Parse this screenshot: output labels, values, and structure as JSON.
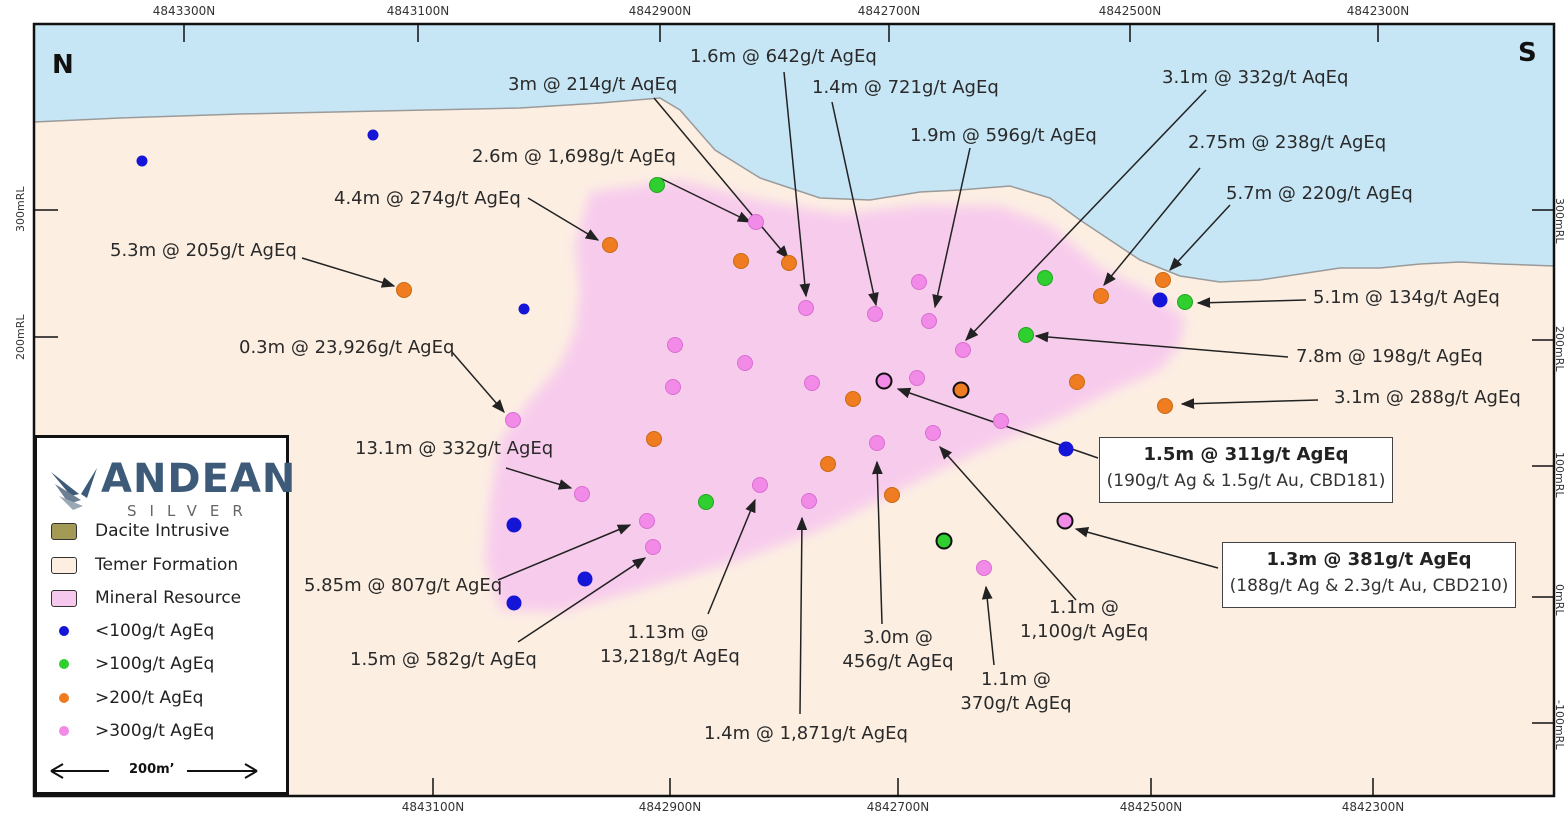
{
  "compass": {
    "north": "N",
    "south": "S"
  },
  "northings_top": [
    "4843300N",
    "4843100N",
    "4842900N",
    "4842700N",
    "4842500N",
    "4842300N"
  ],
  "northings_bottom": [
    "4843100N",
    "4842900N",
    "4842700N",
    "4842500N",
    "4842300N"
  ],
  "rl_left": [
    "300mRL",
    "200mRL"
  ],
  "rl_right": [
    "300mRL",
    "200mRL",
    "100mRL",
    "0mRL",
    "-100mRL"
  ],
  "colors": {
    "sky": "#c6e6f6",
    "formation": "#fcefe2",
    "resource": "#f7c8ee",
    "lt100": "#1515d8",
    "gt100": "#2fcf2f",
    "gt200": "#f07c22",
    "gt300": "#f28ae8"
  },
  "intercepts": [
    {
      "label": "1.6m @ 642g/t AgEq"
    },
    {
      "label": "3m @ 214g/t AqEq"
    },
    {
      "label": "1.4m @ 721g/t AgEq"
    },
    {
      "label": "3.1m @ 332g/t AqEq"
    },
    {
      "label": "1.9m @ 596g/t AgEq"
    },
    {
      "label": "2.6m @ 1,698g/t AgEq"
    },
    {
      "label": "2.75m @ 238g/t AgEq"
    },
    {
      "label": "4.4m @ 274g/t AgEq"
    },
    {
      "label": "5.7m @ 220g/t AgEq"
    },
    {
      "label": "5.3m @ 205g/t AgEq"
    },
    {
      "label": "5.1m @ 134g/t AgEq"
    },
    {
      "label": "0.3m @ 23,926g/t AgEq"
    },
    {
      "label": "7.8m @ 198g/t AgEq"
    },
    {
      "label": "3.1m @ 288g/t AgEq"
    },
    {
      "label": "13.1m @ 332g/t AgEq"
    },
    {
      "label": "5.85m @ 807g/t AgEq"
    },
    {
      "label": "1.5m @ 582g/t AgEq"
    },
    {
      "line1": "1.13m @",
      "line2": "13,218g/t AgEq"
    },
    {
      "label": "1.4m @ 1,871g/t AgEq"
    },
    {
      "line1": "3.0m @",
      "line2": "456g/t AgEq"
    },
    {
      "line1": "1.1m @",
      "line2": "370g/t AgEq"
    },
    {
      "line1": "1.1m @",
      "line2": "1,100g/t AgEq"
    }
  ],
  "callouts": [
    {
      "title": "1.5m @ 311g/t AgEq",
      "detail": "(190g/t Ag & 1.5g/t Au, CBD181)"
    },
    {
      "title": "1.3m @ 381g/t AgEq",
      "detail": "(188g/t Ag & 2.3g/t Au, CBD210)"
    }
  ],
  "legend": {
    "logo_word": "ANDEAN",
    "logo_sub": "SILVER",
    "items": [
      {
        "label": "Dacite Intrusive",
        "color": "#a39a55",
        "kind": "swatch"
      },
      {
        "label": "Temer Formation",
        "color": "#fcefe2",
        "kind": "swatch"
      },
      {
        "label": "Mineral Resource",
        "color": "#f7c8ee",
        "kind": "swatch"
      },
      {
        "label": "<100g/t AgEq",
        "color": "#1515d8",
        "kind": "dot"
      },
      {
        "label": ">100g/t AgEq",
        "color": "#2fcf2f",
        "kind": "dot"
      },
      {
        "label": ">200/t AgEq",
        "color": "#f07c22",
        "kind": "dot"
      },
      {
        "label": ">300g/t AgEq",
        "color": "#f28ae8",
        "kind": "dot"
      }
    ],
    "scale_label": "200m’"
  }
}
